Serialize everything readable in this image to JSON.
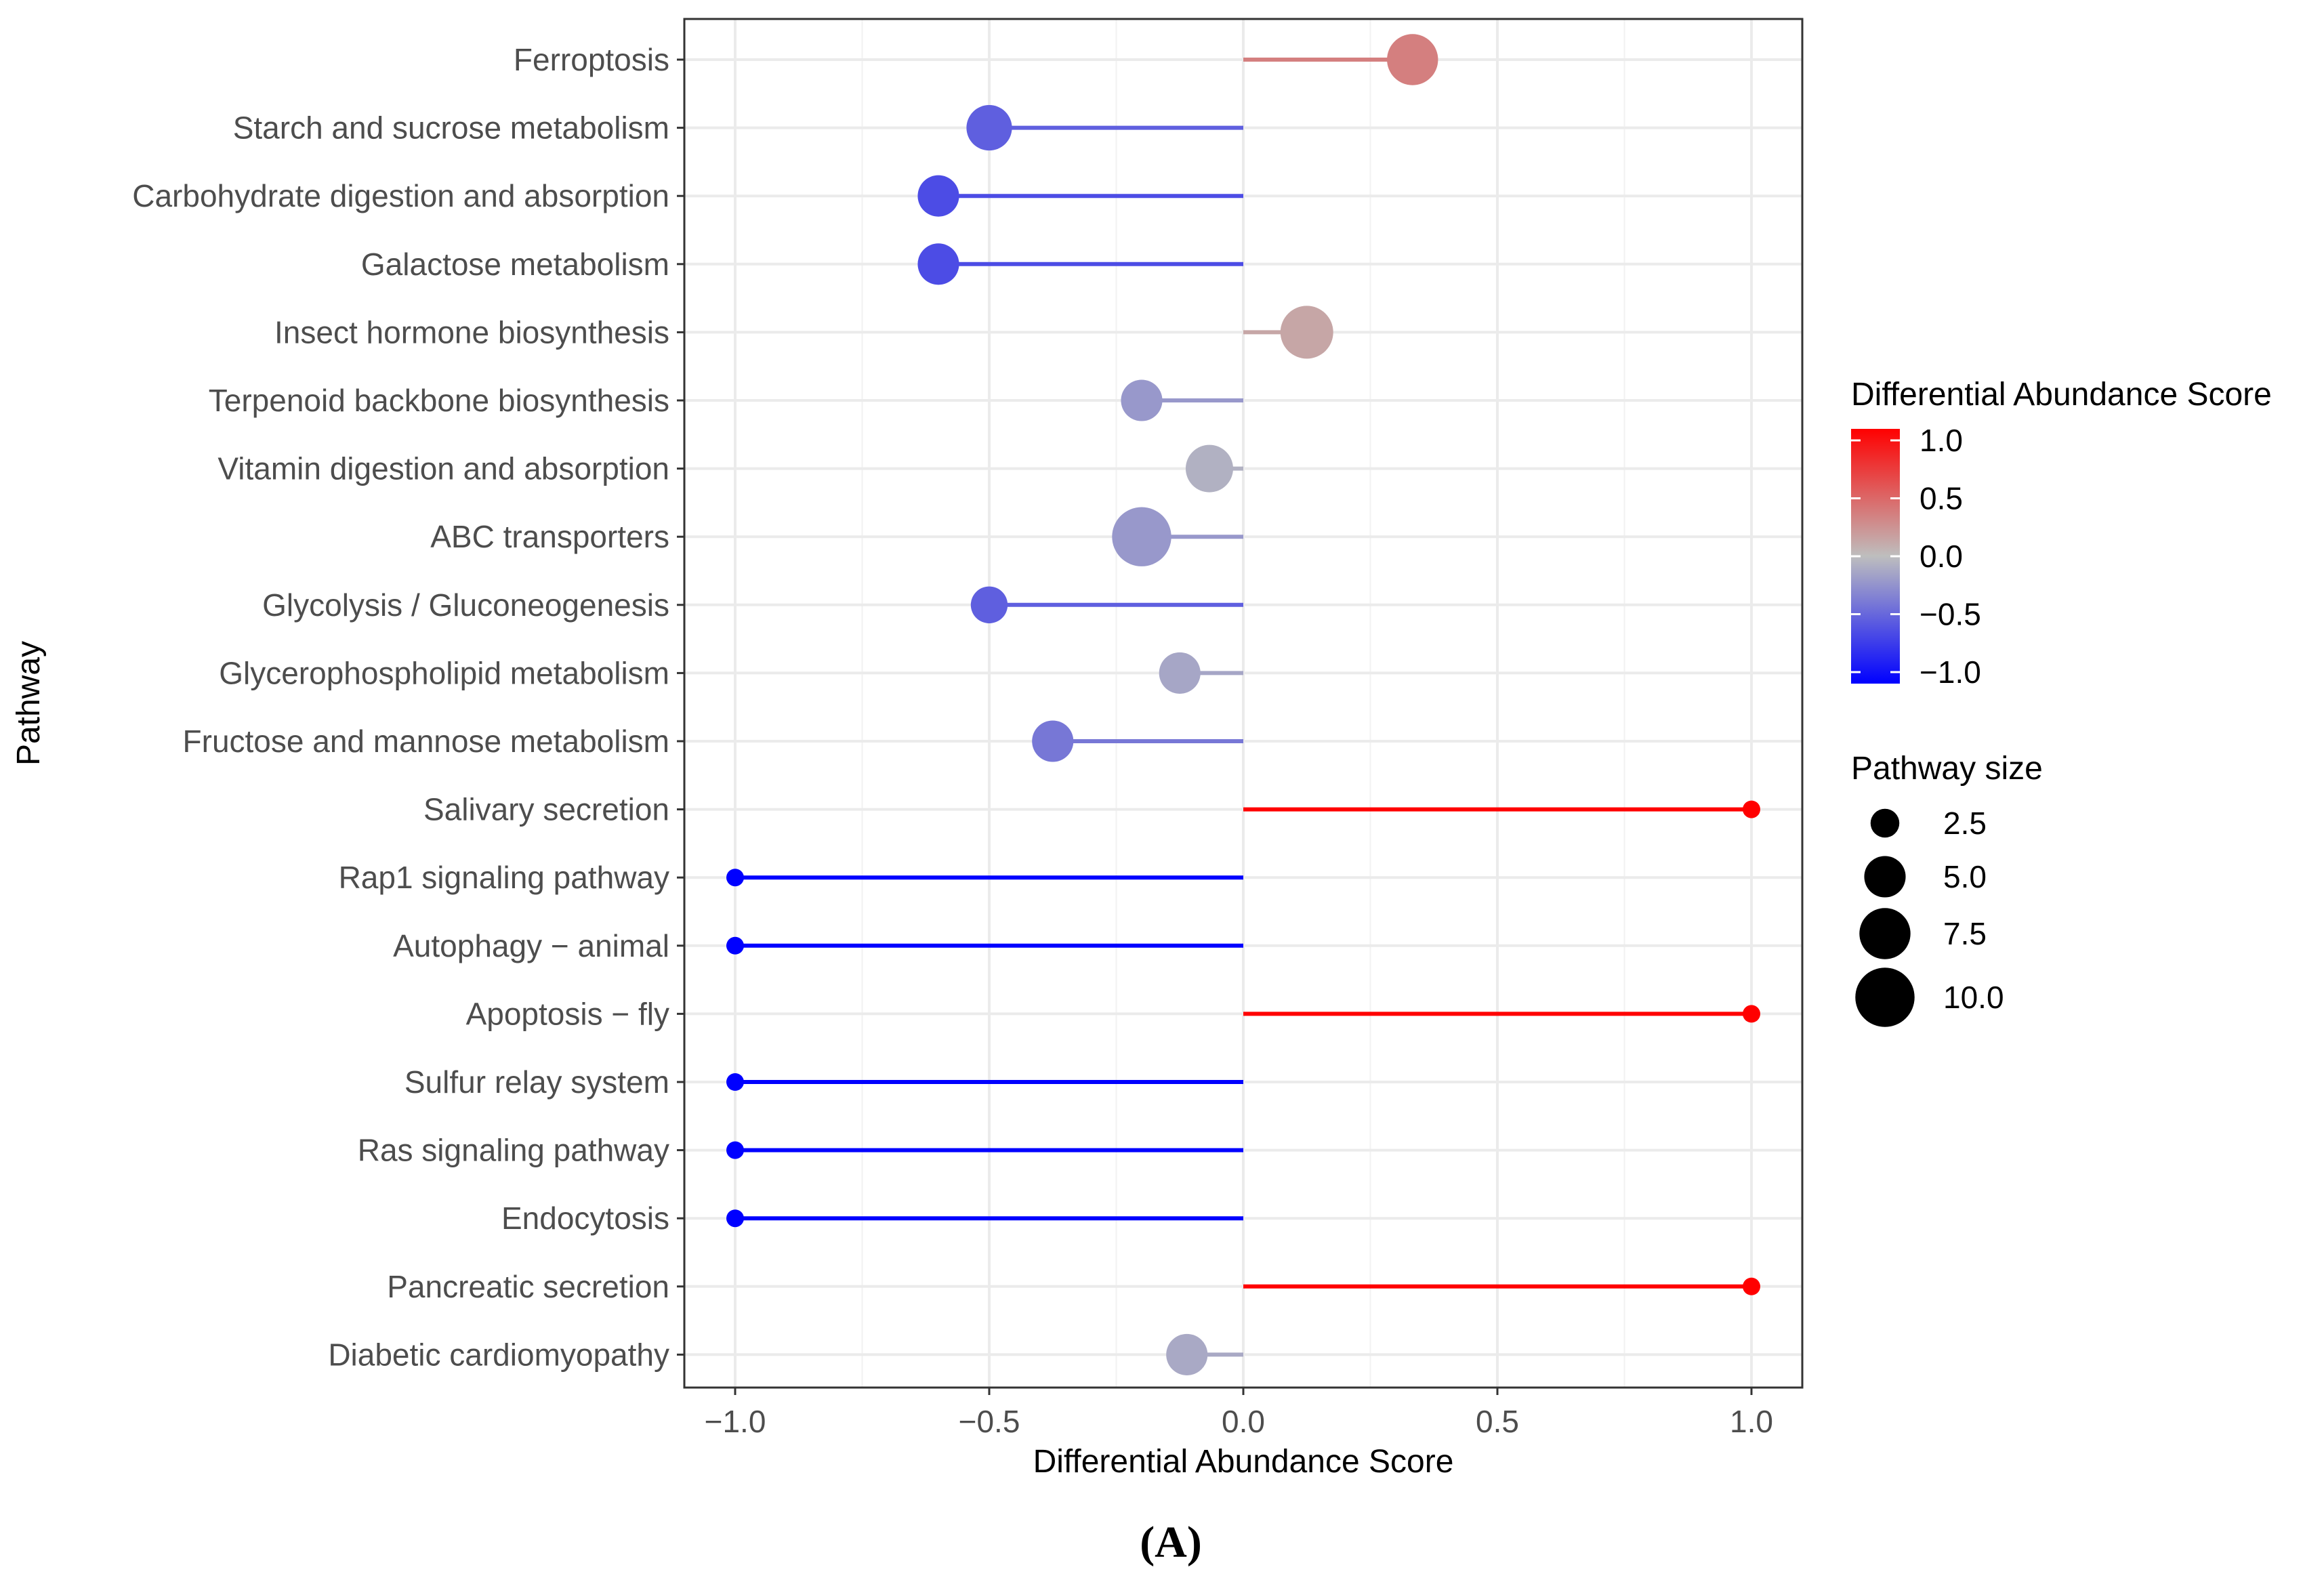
{
  "chart_data": {
    "type": "lollipop",
    "title": "",
    "xlabel": "Differential Abundance Score",
    "ylabel": "Pathway",
    "xlim": [
      -1.1,
      1.1
    ],
    "xticks": [
      -1.0,
      -0.5,
      0.0,
      0.5,
      1.0
    ],
    "xtick_labels": [
      "−1.0",
      "−0.5",
      "0.0",
      "0.5",
      "1.0"
    ],
    "grid": true,
    "pathways": [
      {
        "name": "Ferroptosis",
        "score": 0.333,
        "size": 7.5
      },
      {
        "name": "Starch and sucrose metabolism",
        "score": -0.5,
        "size": 6.0
      },
      {
        "name": "Carbohydrate digestion and absorption",
        "score": -0.6,
        "size": 5.0
      },
      {
        "name": "Galactose metabolism",
        "score": -0.6,
        "size": 5.0
      },
      {
        "name": "Insect hormone biosynthesis",
        "score": 0.125,
        "size": 8.0
      },
      {
        "name": "Terpenoid backbone biosynthesis",
        "score": -0.2,
        "size": 5.0
      },
      {
        "name": "Vitamin digestion and absorption",
        "score": -0.0667,
        "size": 6.5
      },
      {
        "name": "ABC transporters",
        "score": -0.2,
        "size": 10.0
      },
      {
        "name": "Glycolysis / Gluconeogenesis",
        "score": -0.5,
        "size": 4.0
      },
      {
        "name": "Glycerophospholipid metabolism",
        "score": -0.125,
        "size": 5.0
      },
      {
        "name": "Fructose and mannose metabolism",
        "score": -0.375,
        "size": 5.0
      },
      {
        "name": "Salivary secretion",
        "score": 1.0,
        "size": 1.0
      },
      {
        "name": "Rap1 signaling pathway",
        "score": -1.0,
        "size": 1.0
      },
      {
        "name": "Autophagy − animal",
        "score": -1.0,
        "size": 1.0
      },
      {
        "name": "Apoptosis − fly",
        "score": 1.0,
        "size": 1.0
      },
      {
        "name": "Sulfur relay system",
        "score": -1.0,
        "size": 1.0
      },
      {
        "name": "Ras signaling pathway",
        "score": -1.0,
        "size": 1.0
      },
      {
        "name": "Endocytosis",
        "score": -1.0,
        "size": 1.0
      },
      {
        "name": "Pancreatic secretion",
        "score": 1.0,
        "size": 1.0
      },
      {
        "name": "Diabetic cardiomyopathy",
        "score": -0.111,
        "size": 5.0
      }
    ],
    "color_legend": {
      "title": "Differential Abundance Score",
      "ticks": [
        1.0,
        0.5,
        0.0,
        -0.5,
        -1.0
      ],
      "tick_labels": [
        "1.0",
        "0.5",
        "0.0",
        "−0.5",
        "−1.0"
      ],
      "colors": {
        "high": "#ff0000",
        "mid": "#bebebe",
        "low": "#0000ff"
      }
    },
    "size_legend": {
      "title": "Pathway size",
      "values": [
        2.5,
        5.0,
        7.5,
        10.0
      ],
      "labels": [
        "2.5",
        "5.0",
        "7.5",
        "10.0"
      ],
      "color": "#000000"
    }
  },
  "caption": "(A)"
}
